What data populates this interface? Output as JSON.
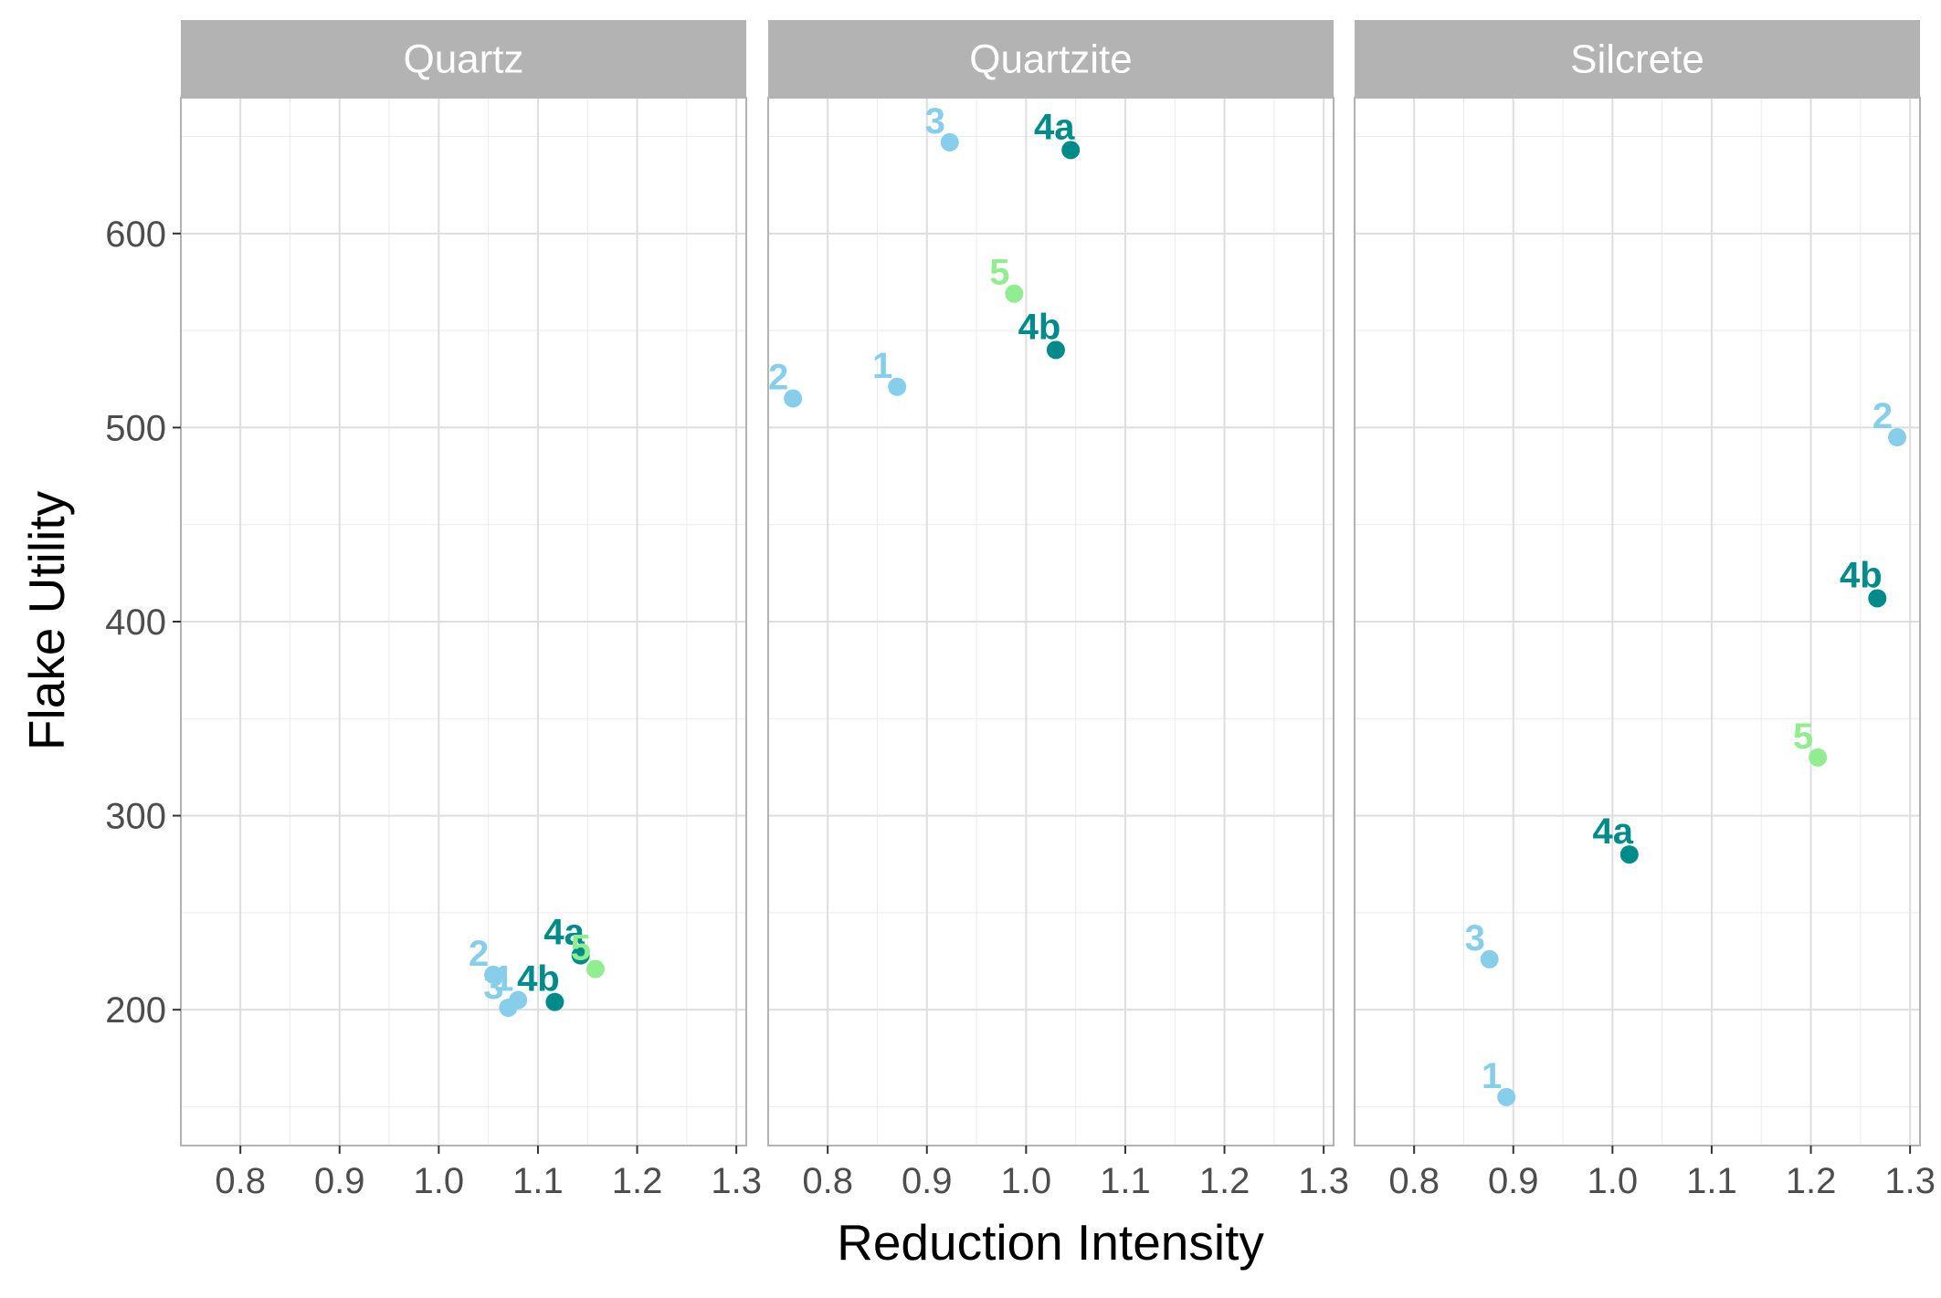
{
  "chart_data": {
    "type": "scatter",
    "xlabel": "Reduction Intensity",
    "ylabel": "Flake Utility",
    "xlim": [
      0.74,
      1.31
    ],
    "ylim": [
      130,
      670
    ],
    "x_ticks": [
      "0.8",
      "0.9",
      "1.0",
      "1.1",
      "1.2",
      "1.3"
    ],
    "x_tick_values": [
      0.8,
      0.9,
      1.0,
      1.1,
      1.2,
      1.3
    ],
    "y_ticks": [
      "200",
      "300",
      "400",
      "500",
      "600"
    ],
    "y_tick_values": [
      200,
      300,
      400,
      500,
      600
    ],
    "grid": true,
    "colors": {
      "light_blue": "#87ceeb",
      "teal": "#008b8b",
      "light_green": "#90ee90",
      "strip_bg": "#b3b3b3",
      "grid": "#ebebeb",
      "panel_border": "#b3b3b3"
    },
    "panels": [
      {
        "name": "Quartz",
        "points": [
          {
            "label": "1",
            "x": 1.08,
            "y": 205,
            "color": "#87ceeb"
          },
          {
            "label": "2",
            "x": 1.055,
            "y": 218,
            "color": "#87ceeb"
          },
          {
            "label": "3",
            "x": 1.07,
            "y": 201,
            "color": "#87ceeb"
          },
          {
            "label": "4a",
            "x": 1.143,
            "y": 228,
            "color": "#008b8b"
          },
          {
            "label": "4b",
            "x": 1.117,
            "y": 204,
            "color": "#008b8b"
          },
          {
            "label": "5",
            "x": 1.158,
            "y": 221,
            "color": "#90ee90"
          }
        ]
      },
      {
        "name": "Quartzite",
        "points": [
          {
            "label": "1",
            "x": 0.87,
            "y": 521,
            "color": "#87ceeb"
          },
          {
            "label": "2",
            "x": 0.765,
            "y": 515,
            "color": "#87ceeb"
          },
          {
            "label": "3",
            "x": 0.923,
            "y": 647,
            "color": "#87ceeb"
          },
          {
            "label": "4a",
            "x": 1.045,
            "y": 643,
            "color": "#008b8b"
          },
          {
            "label": "4b",
            "x": 1.03,
            "y": 540,
            "color": "#008b8b"
          },
          {
            "label": "5",
            "x": 0.988,
            "y": 569,
            "color": "#90ee90"
          }
        ]
      },
      {
        "name": "Silcrete",
        "points": [
          {
            "label": "1",
            "x": 0.893,
            "y": 155,
            "color": "#87ceeb"
          },
          {
            "label": "2",
            "x": 1.287,
            "y": 495,
            "color": "#87ceeb"
          },
          {
            "label": "3",
            "x": 0.876,
            "y": 226,
            "color": "#87ceeb"
          },
          {
            "label": "4a",
            "x": 1.017,
            "y": 280,
            "color": "#008b8b"
          },
          {
            "label": "4b",
            "x": 1.267,
            "y": 412,
            "color": "#008b8b"
          },
          {
            "label": "5",
            "x": 1.207,
            "y": 330,
            "color": "#90ee90"
          }
        ]
      }
    ]
  }
}
